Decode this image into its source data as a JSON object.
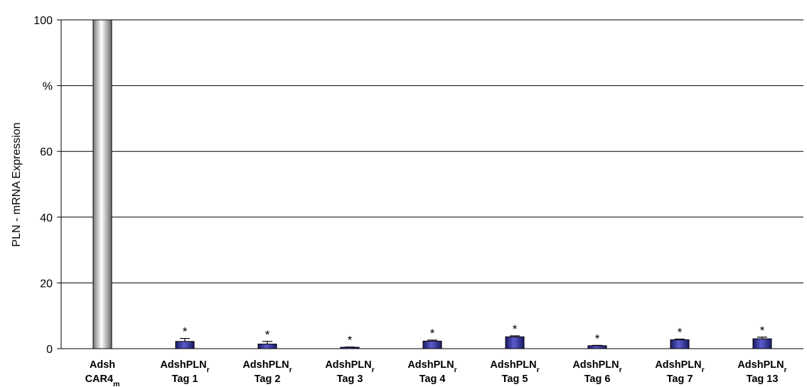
{
  "chart_data": {
    "type": "bar",
    "ylabel": "PLN - mRNA Expression",
    "ylim": [
      0,
      100
    ],
    "y_ticks": [
      {
        "value": 0,
        "label": "0"
      },
      {
        "value": 20,
        "label": "20"
      },
      {
        "value": 40,
        "label": "40"
      },
      {
        "value": 60,
        "label": "60"
      },
      {
        "value": 80,
        "label": "%"
      },
      {
        "value": 100,
        "label": "100"
      }
    ],
    "grid": true,
    "categories": [
      {
        "line1": "Adsh",
        "line2": "CAR4",
        "sub1": "",
        "sub2": "m"
      },
      {
        "line1": "AdshPLN",
        "line2": "Tag 1",
        "sub1": "r",
        "sub2": ""
      },
      {
        "line1": "AdshPLN",
        "line2": "Tag 2",
        "sub1": "r",
        "sub2": ""
      },
      {
        "line1": "AdshPLN",
        "line2": "Tag 3",
        "sub1": "r",
        "sub2": ""
      },
      {
        "line1": "AdshPLN",
        "line2": "Tag 4",
        "sub1": "r",
        "sub2": ""
      },
      {
        "line1": "AdshPLN",
        "line2": "Tag 5",
        "sub1": "r",
        "sub2": ""
      },
      {
        "line1": "AdshPLN",
        "line2": "Tag 6",
        "sub1": "r",
        "sub2": ""
      },
      {
        "line1": "AdshPLN",
        "line2": "Tag 7",
        "sub1": "r",
        "sub2": ""
      },
      {
        "line1": "AdshPLN",
        "line2": "Tag 13",
        "sub1": "r",
        "sub2": ""
      }
    ],
    "values": [
      100,
      2.2,
      1.4,
      0.4,
      2.3,
      3.6,
      0.9,
      2.7,
      3.0
    ],
    "errors": [
      0,
      0.9,
      0.8,
      0.1,
      0.3,
      0.3,
      0.1,
      0.2,
      0.5
    ],
    "significance": [
      "",
      "*",
      "*",
      "*",
      "*",
      "*",
      "*",
      "*",
      "*"
    ],
    "colors": {
      "control_bar": "#d9d9d9",
      "treatment_bar": "#333399",
      "grid": "#000000"
    }
  }
}
